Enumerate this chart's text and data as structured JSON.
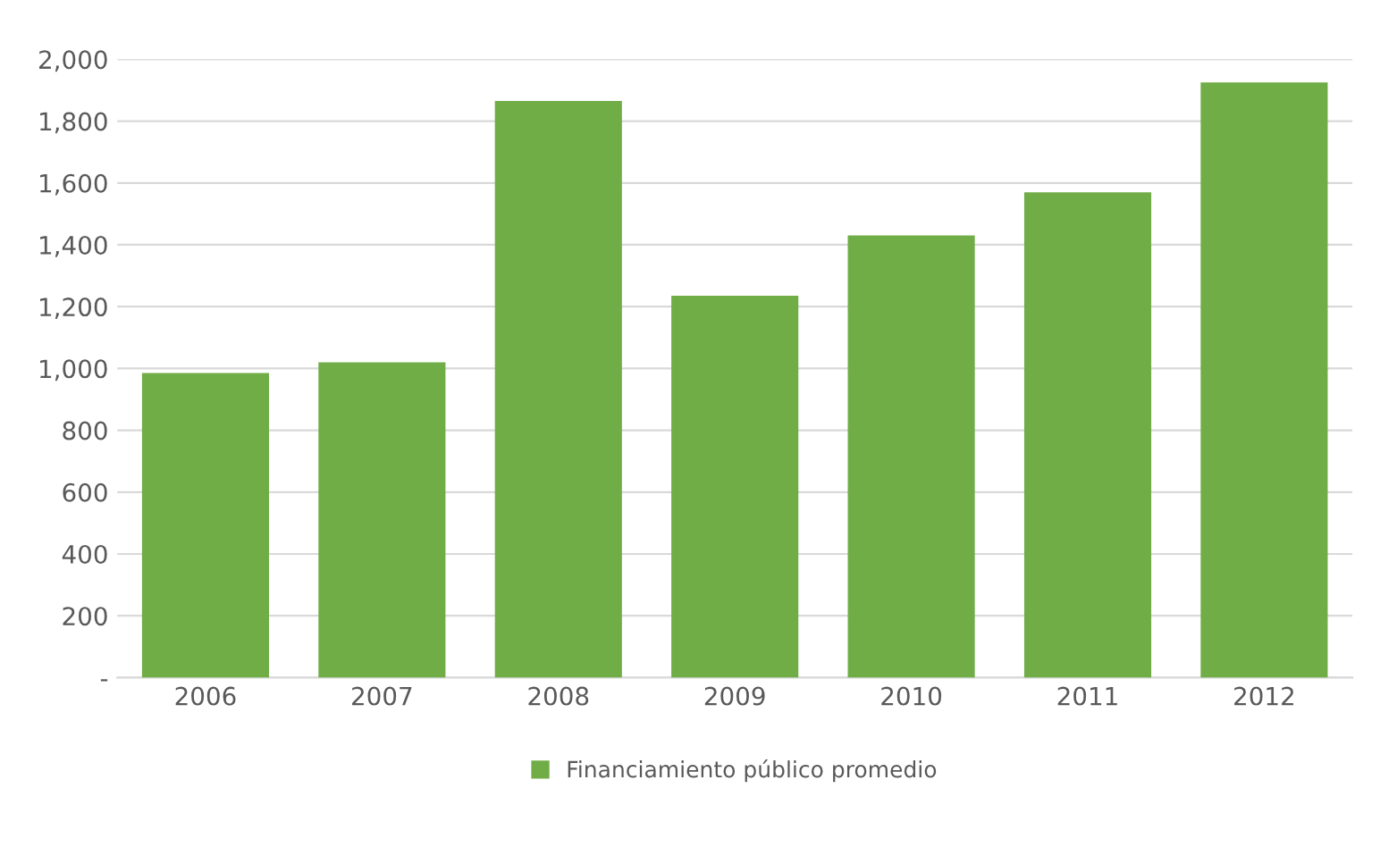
{
  "chart_data": {
    "type": "bar",
    "categories": [
      "2006",
      "2007",
      "2008",
      "2009",
      "2010",
      "2011",
      "2012"
    ],
    "series": [
      {
        "name": "Financiamiento público promedio",
        "color": "#70ad47",
        "values": [
          985,
          1020,
          1865,
          1235,
          1430,
          1570,
          1925
        ]
      }
    ],
    "ylim": [
      0,
      2000
    ],
    "yticks": [
      {
        "value": 0,
        "label": "-"
      },
      {
        "value": 200,
        "label": "200"
      },
      {
        "value": 400,
        "label": "400"
      },
      {
        "value": 600,
        "label": "600"
      },
      {
        "value": 800,
        "label": "800"
      },
      {
        "value": 1000,
        "label": "1,000"
      },
      {
        "value": 1200,
        "label": "1,200"
      },
      {
        "value": 1400,
        "label": "1,400"
      },
      {
        "value": 1600,
        "label": "1,600"
      },
      {
        "value": 1800,
        "label": "1,800"
      },
      {
        "value": 2000,
        "label": "2,000"
      }
    ],
    "grid": "y",
    "legend": "bottom"
  }
}
